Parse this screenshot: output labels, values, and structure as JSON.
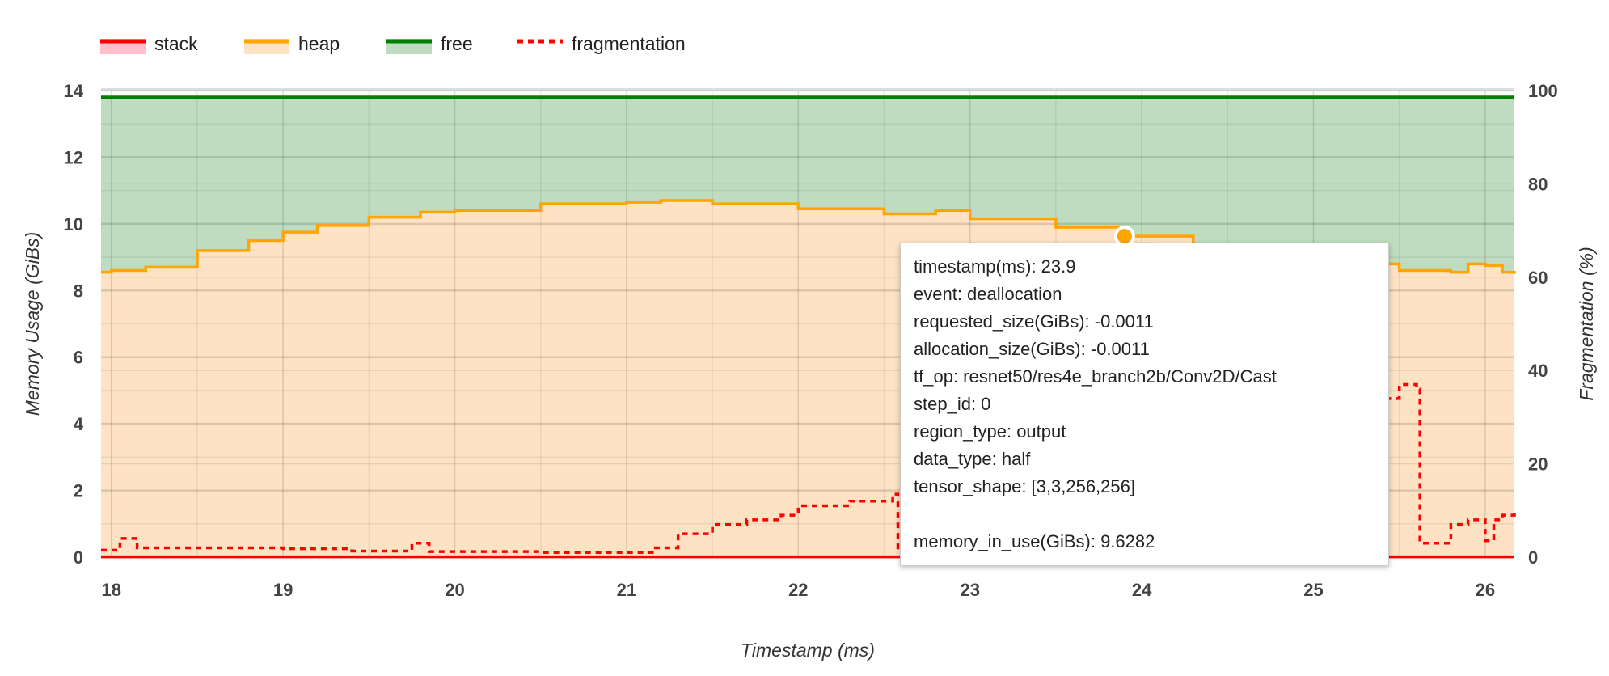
{
  "chart_data": {
    "type": "area",
    "xlabel": "Timestamp (ms)",
    "ylabel": "Memory Usage (GiBs)",
    "y2label": "Fragmentation (%)",
    "xlim": [
      17.94,
      26.17
    ],
    "ylim": [
      0,
      14
    ],
    "y2lim": [
      0,
      100
    ],
    "xticks": [
      "18",
      "19",
      "20",
      "21",
      "22",
      "23",
      "24",
      "25",
      "26"
    ],
    "yticks": [
      "0",
      "2",
      "4",
      "6",
      "8",
      "10",
      "12",
      "14"
    ],
    "y2ticks": [
      "0",
      "20",
      "40",
      "60",
      "80",
      "100"
    ],
    "grid": true,
    "legend_position": "top-left",
    "legend": [
      {
        "name": "stack",
        "line": "#ff0000",
        "fill": "#ffc0cb",
        "style": "solid"
      },
      {
        "name": "heap",
        "line": "#ffa500",
        "fill": "#fde3c3",
        "style": "solid"
      },
      {
        "name": "free",
        "line": "#008000",
        "fill": "#bfdcc0",
        "style": "solid"
      },
      {
        "name": "fragmentation",
        "line": "#ff0000",
        "style": "dotted"
      }
    ],
    "series": {
      "stack": {
        "x": [
          17.94,
          26.17
        ],
        "y": [
          0.01,
          0.01
        ]
      },
      "heap": {
        "x": [
          17.94,
          18.0,
          18.2,
          18.5,
          18.8,
          19.0,
          19.2,
          19.5,
          19.8,
          20.0,
          20.5,
          21.0,
          21.2,
          21.5,
          22.0,
          22.5,
          22.8,
          23.0,
          23.5,
          23.9,
          24.3,
          24.8,
          25.2,
          25.5,
          25.8,
          25.9,
          26.0,
          26.1,
          26.17
        ],
        "y": [
          8.55,
          8.6,
          8.7,
          9.2,
          9.5,
          9.75,
          9.95,
          10.2,
          10.35,
          10.4,
          10.6,
          10.65,
          10.7,
          10.6,
          10.45,
          10.3,
          10.4,
          10.15,
          9.9,
          9.63,
          9.3,
          9.05,
          8.8,
          8.6,
          8.55,
          8.8,
          8.75,
          8.55,
          8.5
        ]
      },
      "free": {
        "x": [
          17.94,
          26.17
        ],
        "y": [
          13.8,
          13.8
        ]
      },
      "fragmentation": {
        "x": [
          17.94,
          18.0,
          18.05,
          18.15,
          19.0,
          19.4,
          19.75,
          19.85,
          20.5,
          21.0,
          21.15,
          21.3,
          21.5,
          21.7,
          21.9,
          22.0,
          22.3,
          22.55,
          22.58,
          22.7,
          23.5,
          24.5,
          25.3,
          25.5,
          25.6,
          25.62,
          25.8,
          25.9,
          26.0,
          26.05,
          26.1,
          26.17
        ],
        "y": [
          1.5,
          1.5,
          4,
          2,
          1.8,
          1.3,
          3,
          1.2,
          1,
          1,
          2,
          5,
          7,
          8,
          9,
          11,
          12,
          13.5,
          2,
          5,
          15,
          25,
          34,
          37,
          36,
          3,
          7,
          8,
          3.5,
          8,
          9,
          10
        ]
      }
    },
    "highlight_point": {
      "x": 23.9,
      "y": 9.6282
    }
  },
  "tooltip": {
    "lines": [
      "timestamp(ms): 23.9",
      "event: deallocation",
      "requested_size(GiBs): -0.0011",
      "allocation_size(GiBs): -0.0011",
      "tf_op: resnet50/res4e_branch2b/Conv2D/Cast",
      "step_id: 0",
      "region_type: output",
      "data_type: half",
      "tensor_shape: [3,3,256,256]",
      "",
      "memory_in_use(GiBs): 9.6282"
    ]
  }
}
